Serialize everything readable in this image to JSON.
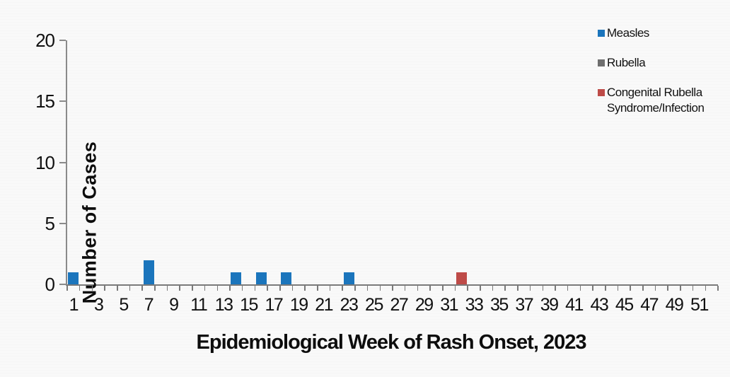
{
  "chart_data": {
    "type": "bar",
    "xlabel": "Epidemiological Week of Rash Onset, 2023",
    "ylabel": "Number of Cases",
    "x_range": [
      1,
      52
    ],
    "x_tick_labels": [
      1,
      3,
      5,
      7,
      9,
      11,
      13,
      15,
      17,
      19,
      21,
      23,
      25,
      27,
      29,
      31,
      33,
      35,
      37,
      39,
      41,
      43,
      45,
      47,
      49,
      51
    ],
    "ylim": [
      0,
      20
    ],
    "y_ticks": [
      0,
      5,
      10,
      15,
      20
    ],
    "grid": false,
    "legend_position": "top-right",
    "series": [
      {
        "name": "Measles",
        "color": "#1B75BC",
        "points": [
          {
            "week": 1,
            "cases": 1
          },
          {
            "week": 7,
            "cases": 2
          },
          {
            "week": 14,
            "cases": 1
          },
          {
            "week": 16,
            "cases": 1
          },
          {
            "week": 18,
            "cases": 1
          },
          {
            "week": 23,
            "cases": 1
          }
        ]
      },
      {
        "name": "Rubella",
        "color": "#6E6E6E",
        "points": []
      },
      {
        "name": "Congenital Rubella Syndrome/Infection",
        "color": "#BE4B48",
        "points": [
          {
            "week": 32,
            "cases": 1
          }
        ]
      }
    ]
  },
  "colors": {
    "axis": "#7a7a7a",
    "text": "#111111",
    "background": "#f8f8f8"
  }
}
